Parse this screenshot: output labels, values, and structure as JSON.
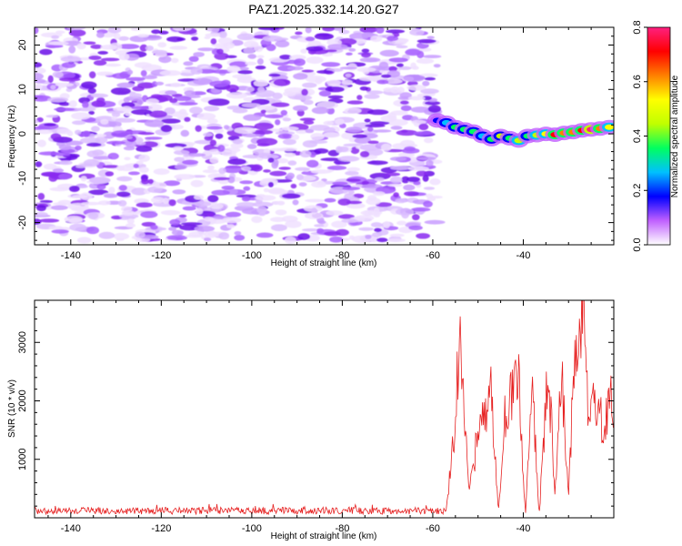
{
  "title": "PAZ1.2025.332.14.20.G27",
  "chart_data": [
    {
      "type": "heatmap",
      "name": "spectrogram",
      "xlabel": "Height of straight line (km)",
      "ylabel": "Frequency (Hz)",
      "xlim": [
        -148,
        -20
      ],
      "ylim": [
        -25,
        24
      ],
      "xticks": [
        -140,
        -120,
        -100,
        -80,
        -60,
        -40
      ],
      "yticks": [
        -20,
        -10,
        0,
        10,
        20
      ],
      "noise_region": {
        "x": [
          -148,
          -59
        ],
        "y": [
          -24,
          24
        ]
      },
      "signal_track": [
        {
          "x": -59,
          "freq": 3.0,
          "amp": 0.22
        },
        {
          "x": -57,
          "freq": 2.5,
          "amp": 0.25
        },
        {
          "x": -55,
          "freq": 1.5,
          "amp": 0.32
        },
        {
          "x": -53,
          "freq": 1.0,
          "amp": 0.38
        },
        {
          "x": -51,
          "freq": 0.5,
          "amp": 0.34
        },
        {
          "x": -49,
          "freq": -0.5,
          "amp": 0.3
        },
        {
          "x": -47,
          "freq": -1.2,
          "amp": 0.36
        },
        {
          "x": -45,
          "freq": -0.5,
          "amp": 0.4
        },
        {
          "x": -43,
          "freq": -1.0,
          "amp": 0.37
        },
        {
          "x": -41,
          "freq": -1.5,
          "amp": 0.42
        },
        {
          "x": -39,
          "freq": -0.5,
          "amp": 0.36
        },
        {
          "x": -37,
          "freq": -0.3,
          "amp": 0.45
        },
        {
          "x": -35,
          "freq": 0.0,
          "amp": 0.5
        },
        {
          "x": -33,
          "freq": -0.2,
          "amp": 0.68
        },
        {
          "x": -31,
          "freq": 0.2,
          "amp": 0.62
        },
        {
          "x": -29,
          "freq": 0.4,
          "amp": 0.58
        },
        {
          "x": -27,
          "freq": 0.8,
          "amp": 0.72
        },
        {
          "x": -25,
          "freq": 1.0,
          "amp": 0.8
        },
        {
          "x": -23,
          "freq": 1.2,
          "amp": 0.66
        },
        {
          "x": -21,
          "freq": 1.5,
          "amp": 0.52
        }
      ],
      "colorbar": {
        "label": "Normalized spectral amplitude",
        "range": [
          0.0,
          0.8
        ],
        "ticks": [
          "0.0",
          "0.2",
          "0.4",
          "0.6",
          "0.8"
        ],
        "colors": [
          "#ffffff",
          "#c060ff",
          "#0000ff",
          "#00c0ff",
          "#00ff60",
          "#c0ff00",
          "#ffff00",
          "#ff8000",
          "#ff0000",
          "#ff2080"
        ]
      }
    },
    {
      "type": "line",
      "name": "snr",
      "xlabel": "Height of straight line (km)",
      "ylabel": "SNR (10 * v/v)",
      "xlim": [
        -148,
        -20
      ],
      "ylim": [
        0,
        3720
      ],
      "xticks": [
        -140,
        -120,
        -100,
        -80,
        -60,
        -40
      ],
      "yticks": [
        1000,
        2000,
        3000
      ],
      "color": "#e62020",
      "noise_level": {
        "from": -148,
        "to": -57,
        "mean": 120,
        "spread": 60
      },
      "peaks": [
        {
          "x": -55.5,
          "y": 1250
        },
        {
          "x": -54.0,
          "y": 3180
        },
        {
          "x": -50.5,
          "y": 1200
        },
        {
          "x": -47.0,
          "y": 2100
        },
        {
          "x": -44.0,
          "y": 1800
        },
        {
          "x": -41.0,
          "y": 2250
        },
        {
          "x": -38.0,
          "y": 2150
        },
        {
          "x": -34.5,
          "y": 2650
        },
        {
          "x": -31.5,
          "y": 2500
        },
        {
          "x": -28.5,
          "y": 3280
        },
        {
          "x": -26.5,
          "y": 3720
        },
        {
          "x": -23.5,
          "y": 2250
        },
        {
          "x": -21.0,
          "y": 2050
        }
      ],
      "troughs": [
        {
          "x": -52.0,
          "y": 350
        },
        {
          "x": -45.5,
          "y": 150
        },
        {
          "x": -39.5,
          "y": 80
        },
        {
          "x": -36.5,
          "y": 30
        },
        {
          "x": -33.0,
          "y": 450
        },
        {
          "x": -30.0,
          "y": 350
        },
        {
          "x": -25.5,
          "y": 1600
        },
        {
          "x": -22.5,
          "y": 1400
        }
      ]
    }
  ]
}
